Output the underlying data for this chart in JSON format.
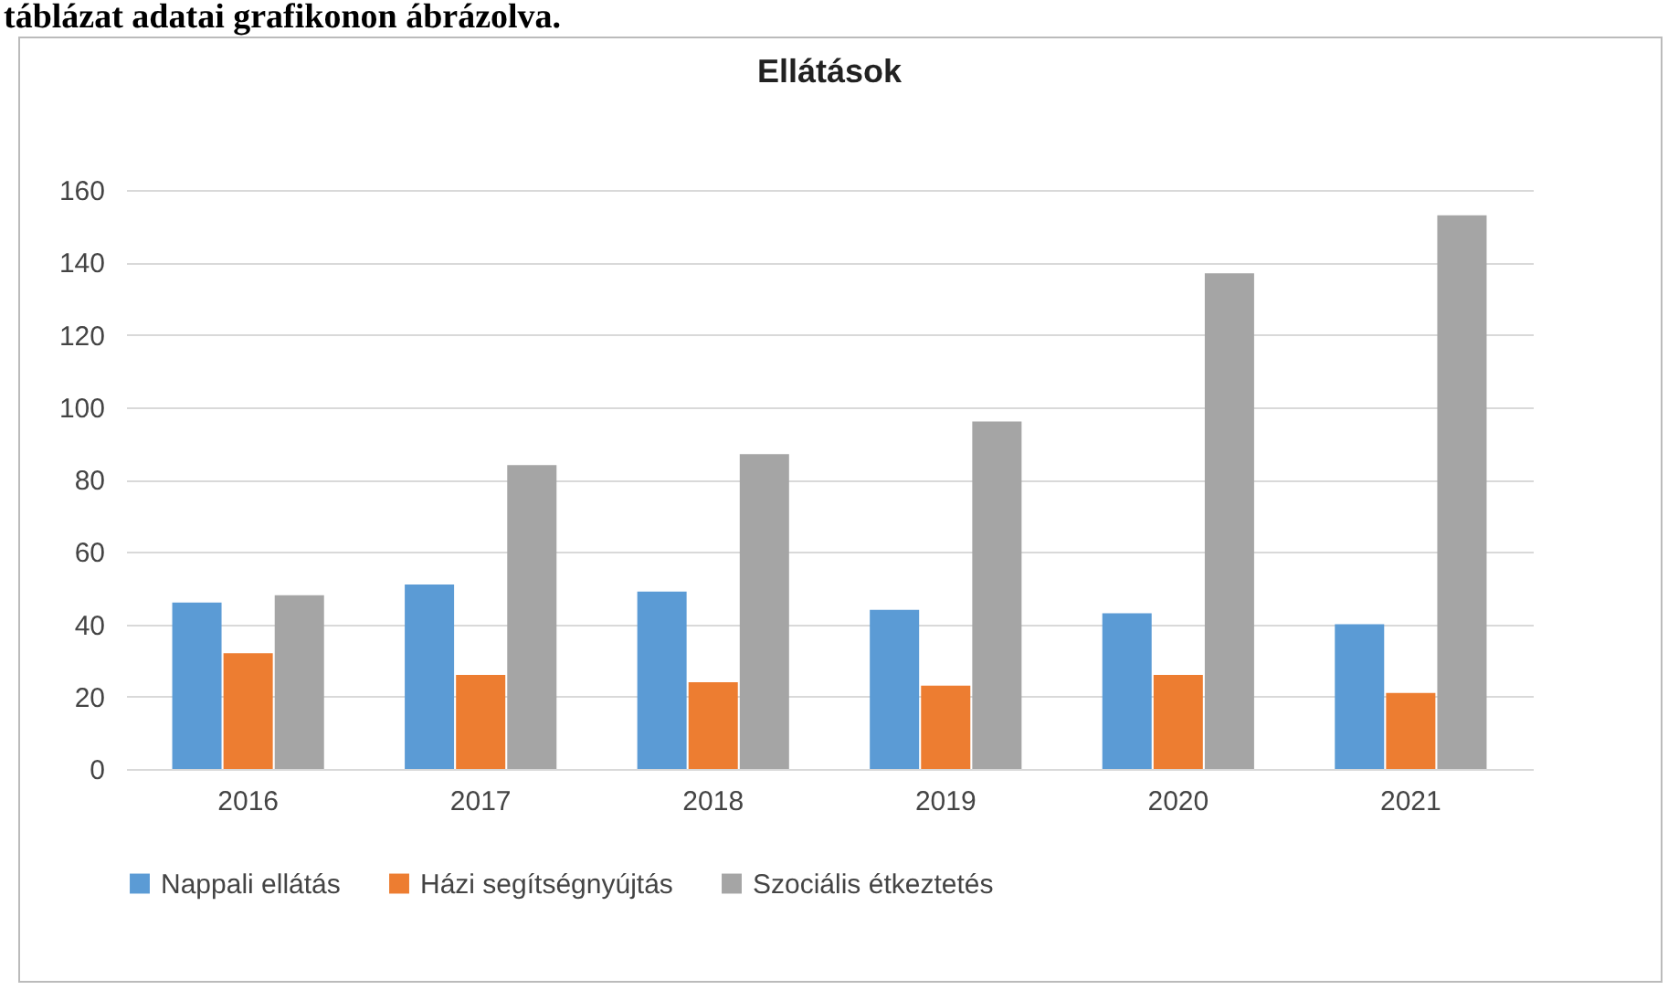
{
  "chart_data": {
    "type": "bar",
    "title": "Ellátások",
    "annotations": [
      "táblázat adatai grafikonon ábrázolva."
    ],
    "categories": [
      "2016",
      "2017",
      "2018",
      "2019",
      "2020",
      "2021"
    ],
    "series": [
      {
        "name": "Nappali ellátás",
        "color": "#5b9bd5",
        "values": [
          46,
          51,
          49,
          44,
          43,
          40
        ]
      },
      {
        "name": "Házi segítségnyújtás",
        "color": "#ed7d31",
        "values": [
          32,
          26,
          24,
          23,
          26,
          21
        ]
      },
      {
        "name": "Szociális étkeztetés",
        "color": "#a5a5a5",
        "values": [
          48,
          84,
          87,
          96,
          137,
          153
        ]
      }
    ],
    "ylim": [
      0,
      160
    ],
    "yticks": [
      0,
      20,
      40,
      60,
      80,
      100,
      120,
      140,
      160
    ],
    "grid": "y",
    "legend": "bottom"
  }
}
